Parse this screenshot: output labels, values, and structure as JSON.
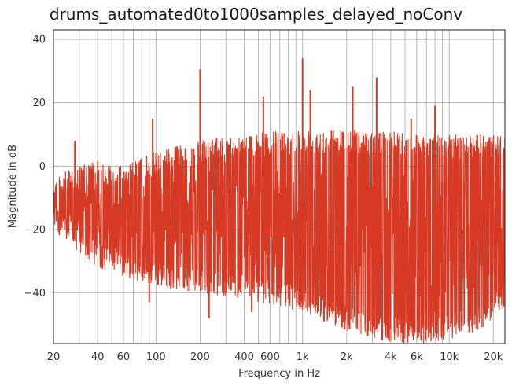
{
  "chart_data": {
    "type": "line",
    "title": "drums_automated0to1000samples_delayed_noConv",
    "xlabel": "Frequency in Hz",
    "ylabel": "Magnitude in dB",
    "xscale": "log",
    "xlim": [
      20,
      24000
    ],
    "ylim": [
      -56,
      43
    ],
    "grid": true,
    "legend": "none",
    "x_ticks": [
      {
        "value": 20,
        "label": "20"
      },
      {
        "value": 40,
        "label": "40"
      },
      {
        "value": 60,
        "label": "60"
      },
      {
        "value": 100,
        "label": "100"
      },
      {
        "value": 200,
        "label": "200"
      },
      {
        "value": 400,
        "label": "400"
      },
      {
        "value": 600,
        "label": "600"
      },
      {
        "value": 1000,
        "label": "1k"
      },
      {
        "value": 2000,
        "label": "2k"
      },
      {
        "value": 4000,
        "label": "4k"
      },
      {
        "value": 6000,
        "label": "6k"
      },
      {
        "value": 10000,
        "label": "10k"
      },
      {
        "value": 20000,
        "label": "20k"
      }
    ],
    "y_ticks": [
      {
        "value": 40,
        "label": "40"
      },
      {
        "value": 20,
        "label": "20"
      },
      {
        "value": 0,
        "label": "0"
      },
      {
        "value": -20,
        "label": "−20"
      },
      {
        "value": -40,
        "label": "−40"
      }
    ],
    "minor_x_gridlines": [
      30,
      50,
      70,
      80,
      90,
      300,
      500,
      700,
      800,
      900,
      3000,
      5000,
      7000,
      8000,
      9000
    ],
    "series": [
      {
        "name": "magnitude",
        "color": "#d63a25",
        "envelope": {
          "x": [
            20,
            30,
            40,
            60,
            100,
            200,
            400,
            1000,
            2000,
            4000,
            8000,
            16000,
            24000
          ],
          "upper": [
            -3,
            0,
            2,
            0,
            5,
            8,
            10,
            12,
            12,
            11,
            10,
            10,
            10
          ],
          "lower": [
            -20,
            -28,
            -32,
            -35,
            -38,
            -40,
            -42,
            -46,
            -52,
            -56,
            -56,
            -52,
            -45
          ]
        },
        "peaks": [
          {
            "x": 28,
            "y": 8
          },
          {
            "x": 95,
            "y": 15
          },
          {
            "x": 200,
            "y": 30.5
          },
          {
            "x": 540,
            "y": 22
          },
          {
            "x": 1000,
            "y": 34
          },
          {
            "x": 1130,
            "y": 24
          },
          {
            "x": 2200,
            "y": 25
          },
          {
            "x": 3200,
            "y": 28
          },
          {
            "x": 5500,
            "y": 15
          },
          {
            "x": 8000,
            "y": 19
          }
        ],
        "dips": [
          {
            "x": 90,
            "y": -43
          },
          {
            "x": 230,
            "y": -48
          },
          {
            "x": 450,
            "y": -46
          },
          {
            "x": 1400,
            "y": -49
          }
        ]
      }
    ]
  }
}
